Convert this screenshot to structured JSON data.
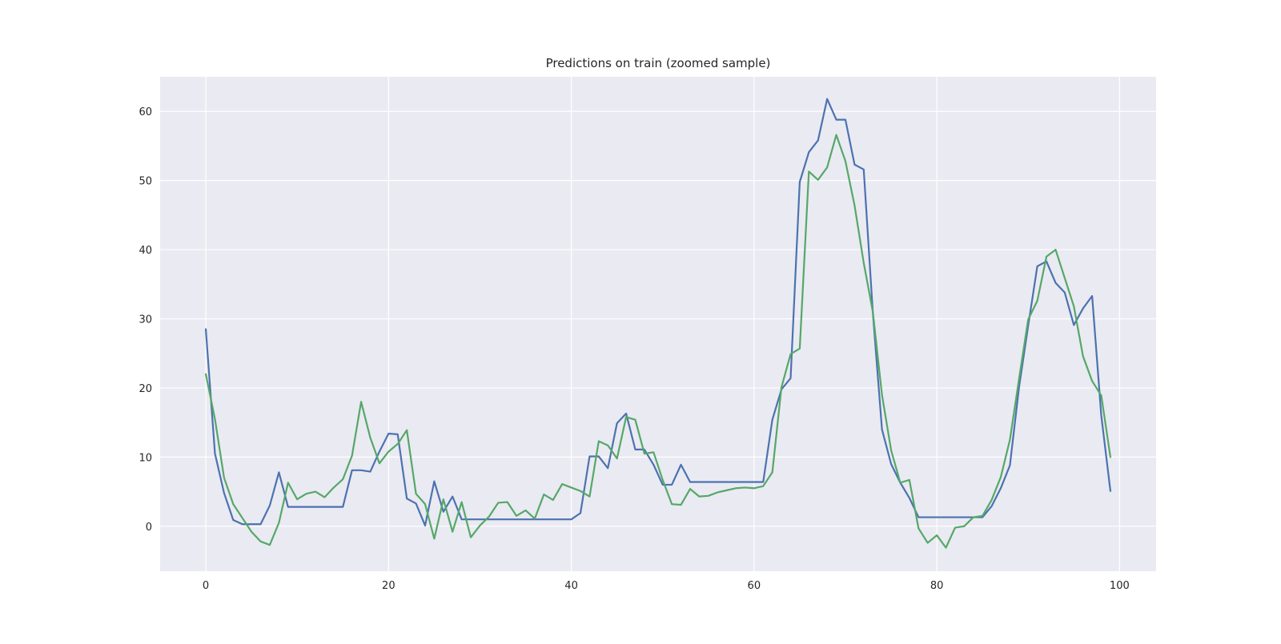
{
  "chart_data": {
    "type": "line",
    "title": "Predictions on train (zoomed sample)",
    "xlabel": "",
    "ylabel": "",
    "xlim": [
      -5,
      104
    ],
    "ylim": [
      -6.5,
      65
    ],
    "x_ticks": [
      0,
      20,
      40,
      60,
      80,
      100
    ],
    "y_ticks": [
      0,
      10,
      20,
      30,
      40,
      50,
      60
    ],
    "x_tick_labels": [
      "0",
      "20",
      "40",
      "60",
      "80",
      "100"
    ],
    "y_tick_labels": [
      "0",
      "10",
      "20",
      "30",
      "40",
      "50",
      "60"
    ],
    "grid": true,
    "background_color": "#eaeaf2",
    "x": [
      0,
      1,
      2,
      3,
      4,
      5,
      6,
      7,
      8,
      9,
      10,
      11,
      12,
      13,
      14,
      15,
      16,
      17,
      18,
      19,
      20,
      21,
      22,
      23,
      24,
      25,
      26,
      27,
      28,
      29,
      30,
      31,
      32,
      33,
      34,
      35,
      36,
      37,
      38,
      39,
      40,
      41,
      42,
      43,
      44,
      45,
      46,
      47,
      48,
      49,
      50,
      51,
      52,
      53,
      54,
      55,
      56,
      57,
      58,
      59,
      60,
      61,
      62,
      63,
      64,
      65,
      66,
      67,
      68,
      69,
      70,
      71,
      72,
      73,
      74,
      75,
      76,
      77,
      78,
      79,
      80,
      81,
      82,
      83,
      84,
      85,
      86,
      87,
      88,
      89,
      90,
      91,
      92,
      93,
      94,
      95,
      96,
      97,
      98,
      99
    ],
    "series": [
      {
        "color": "#4c72b0",
        "values": [
          28.5,
          10.5,
          4.8,
          0.9,
          0.3,
          0.3,
          0.3,
          3.0,
          7.8,
          2.8,
          2.8,
          2.8,
          2.8,
          2.8,
          2.8,
          2.8,
          8.1,
          8.1,
          7.9,
          10.8,
          13.4,
          13.3,
          4.0,
          3.3,
          0.1,
          6.5,
          2.1,
          4.3,
          1.0,
          1.0,
          1.0,
          1.0,
          1.0,
          1.0,
          1.0,
          1.0,
          1.0,
          1.0,
          1.0,
          1.0,
          1.0,
          1.9,
          10.1,
          10.1,
          8.4,
          14.9,
          16.3,
          11.1,
          11.1,
          8.9,
          6.0,
          6.0,
          8.9,
          6.4,
          6.4,
          6.4,
          6.4,
          6.4,
          6.4,
          6.4,
          6.4,
          6.4,
          15.4,
          19.8,
          21.4,
          49.8,
          54.1,
          55.8,
          61.8,
          58.8,
          58.8,
          52.3,
          51.6,
          30.9,
          14.0,
          9.0,
          6.3,
          4.1,
          1.3,
          1.3,
          1.3,
          1.3,
          1.3,
          1.3,
          1.3,
          1.3,
          2.9,
          5.5,
          8.8,
          20.1,
          29.0,
          37.6,
          38.3,
          35.2,
          33.8,
          29.1,
          31.5,
          33.3,
          16.0,
          5.1
        ]
      },
      {
        "color": "#55a868",
        "values": [
          22.0,
          15.5,
          7.0,
          3.2,
          1.2,
          -0.8,
          -2.2,
          -2.7,
          0.5,
          6.3,
          3.9,
          4.7,
          5.0,
          4.2,
          5.6,
          6.8,
          10.2,
          18.0,
          12.8,
          9.1,
          10.8,
          11.9,
          13.9,
          4.7,
          3.2,
          -1.8,
          3.9,
          -0.8,
          3.5,
          -1.6,
          0.1,
          1.4,
          3.4,
          3.5,
          1.5,
          2.3,
          1.1,
          4.6,
          3.8,
          6.1,
          5.6,
          5.1,
          4.3,
          12.3,
          11.7,
          9.8,
          15.8,
          15.4,
          10.5,
          10.7,
          6.7,
          3.2,
          3.1,
          5.4,
          4.3,
          4.4,
          4.9,
          5.2,
          5.5,
          5.6,
          5.5,
          5.8,
          7.8,
          20.1,
          24.9,
          25.7,
          51.3,
          50.1,
          51.9,
          56.6,
          52.8,
          46.4,
          38.1,
          31.0,
          19.0,
          11.0,
          6.3,
          6.7,
          -0.3,
          -2.4,
          -1.3,
          -3.1,
          -0.2,
          0.0,
          1.3,
          1.5,
          3.8,
          7.1,
          12.5,
          21.3,
          29.9,
          32.6,
          39.0,
          40.0,
          35.9,
          31.8,
          24.6,
          21.0,
          18.9,
          10.0
        ]
      }
    ]
  }
}
